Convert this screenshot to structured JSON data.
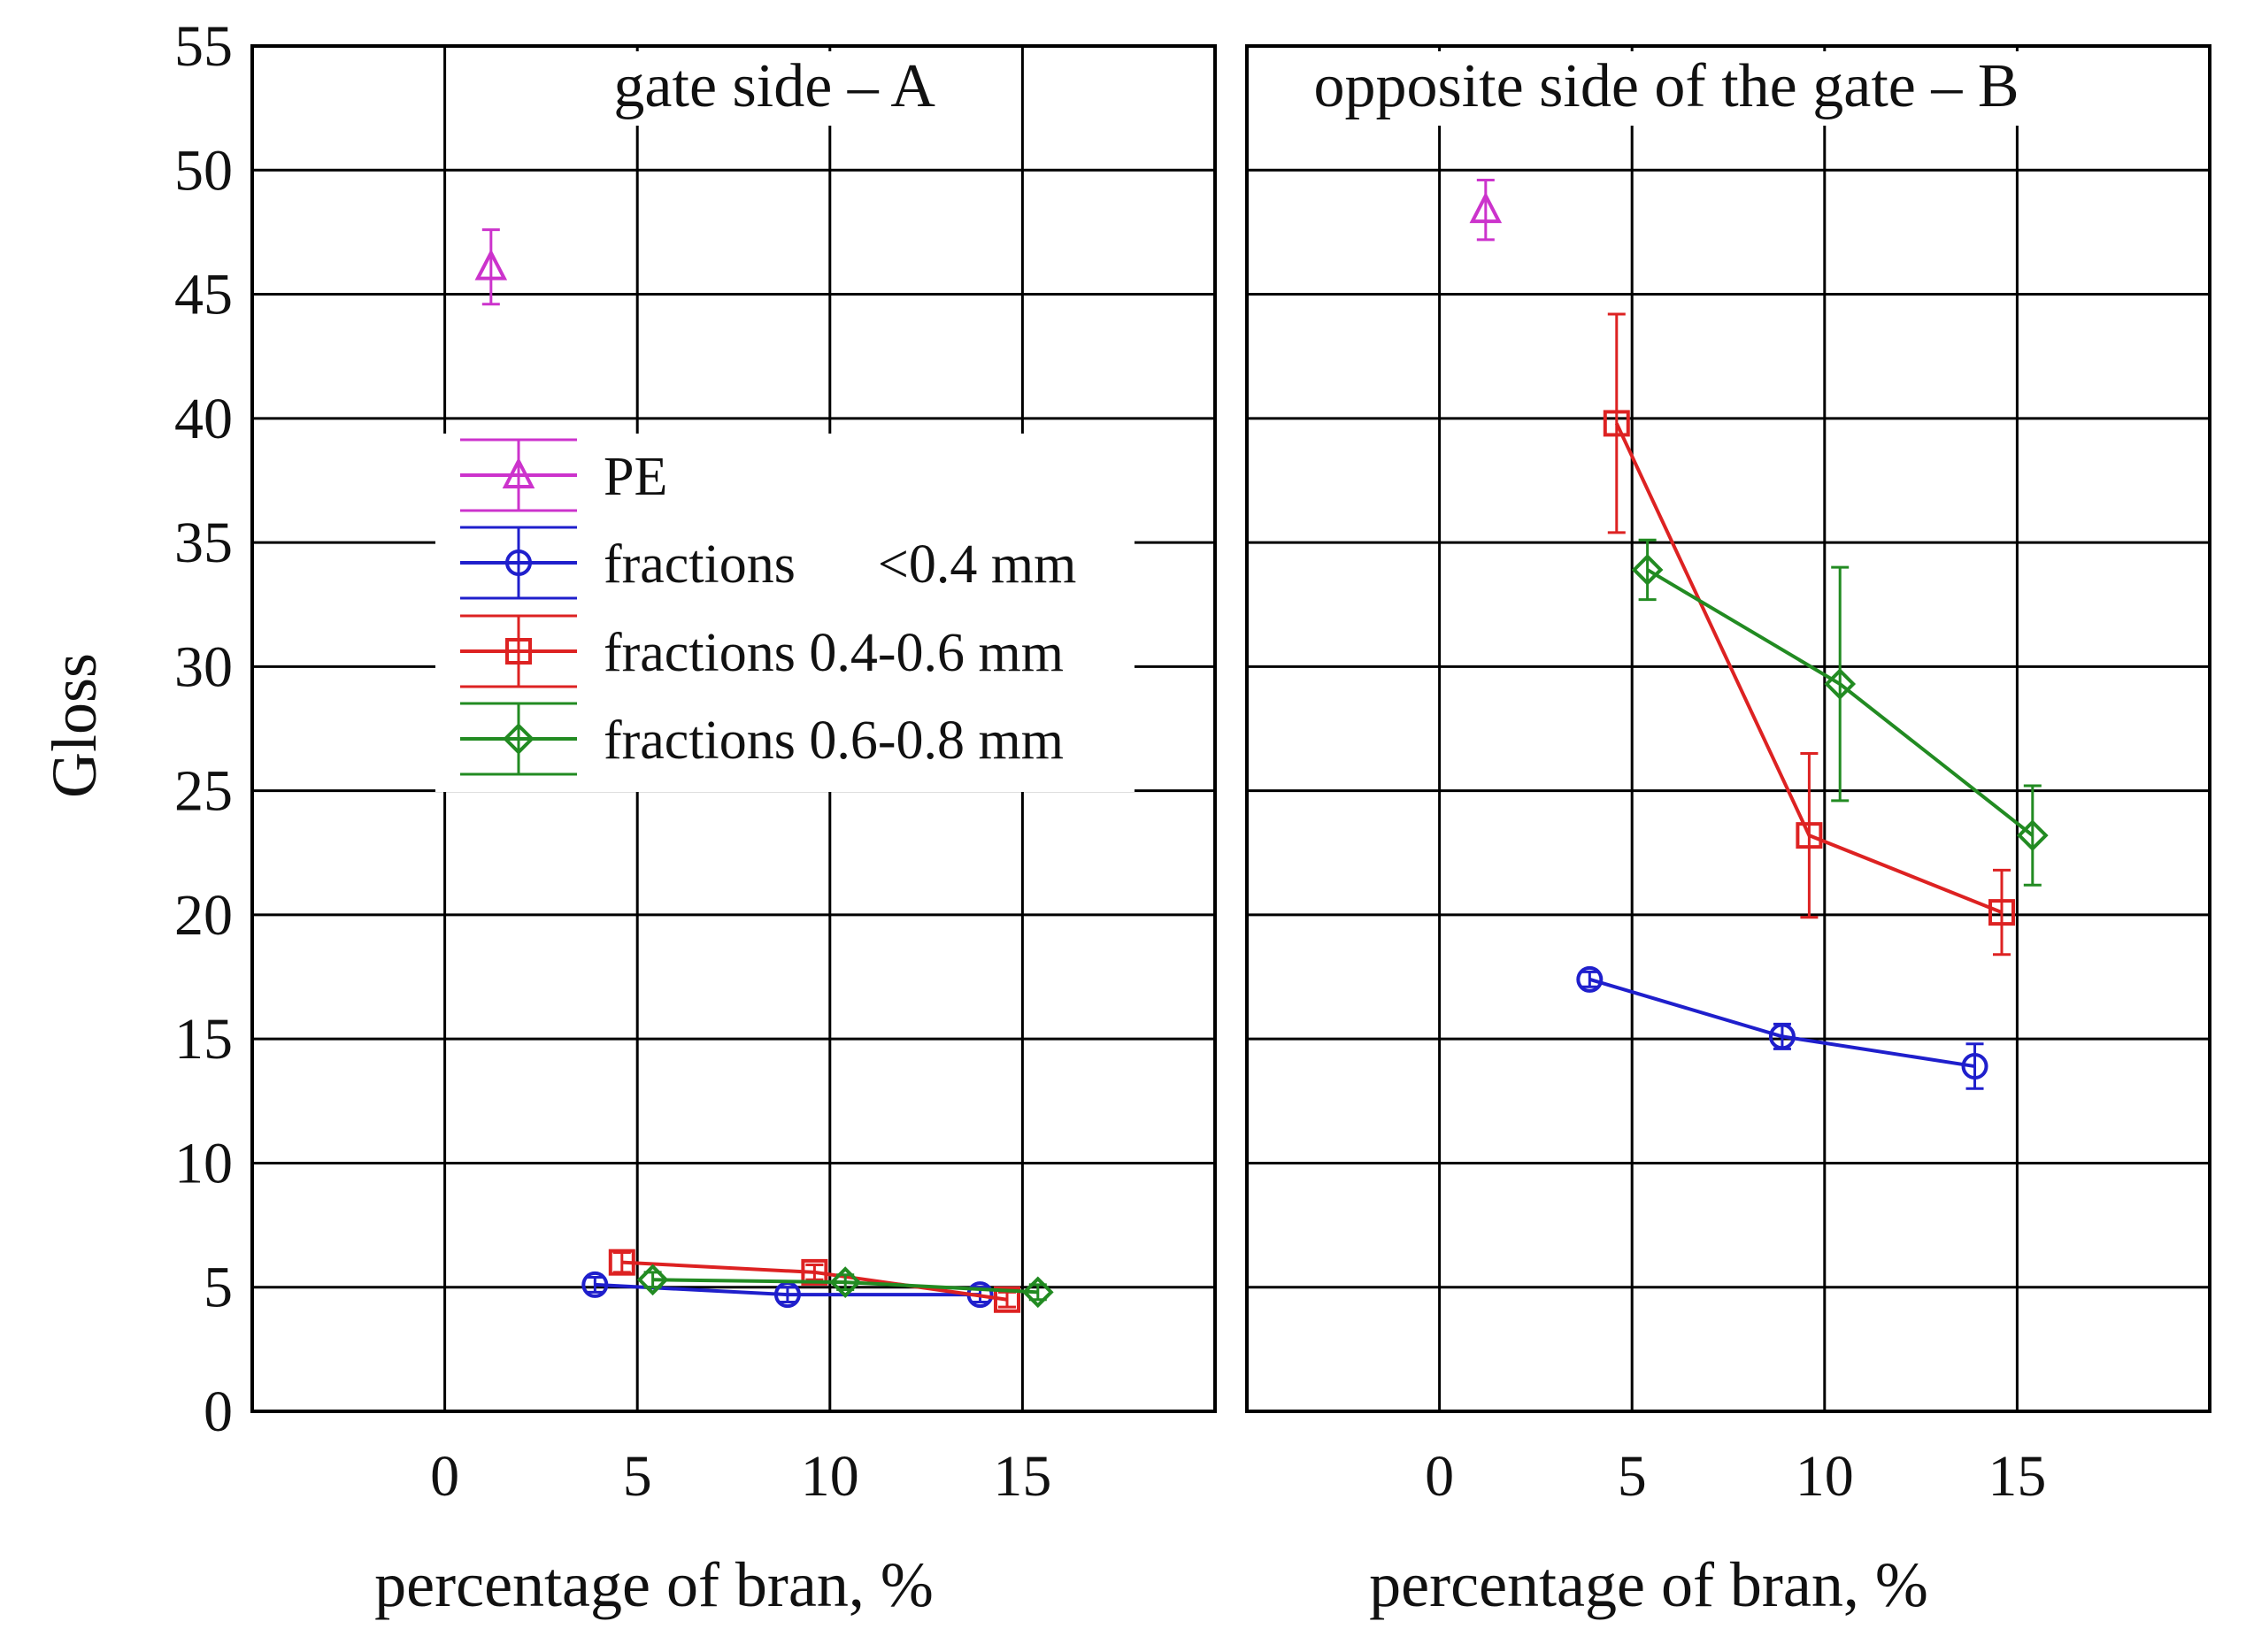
{
  "chart_data": {
    "type": "line",
    "ylabel": "Gloss",
    "ylim": [
      0,
      55
    ],
    "yticks": [
      0,
      5,
      10,
      15,
      20,
      25,
      30,
      35,
      40,
      45,
      50,
      55
    ],
    "xlim": [
      -5,
      20
    ],
    "xticks": [
      0,
      5,
      10,
      15
    ],
    "legend": {
      "position": "upper-left of left panel",
      "entries": [
        {
          "key": "pe",
          "name": "PE",
          "color": "#cc33cc",
          "marker": "triangle"
        },
        {
          "key": "f04",
          "name": "fractions      <0.4 mm",
          "color": "#1f1fcc",
          "marker": "circle"
        },
        {
          "key": "f0406",
          "name": "fractions 0.4-0.6 mm",
          "color": "#dd2222",
          "marker": "square"
        },
        {
          "key": "f0608",
          "name": "fractions 0.6-0.8 mm",
          "color": "#228b22",
          "marker": "diamond"
        }
      ]
    },
    "panels": [
      {
        "title": "gate side – A",
        "xlabel": "percentage of bran, %",
        "series": [
          {
            "key": "pe",
            "points": [
              {
                "x": 1.2,
                "y": 46.1,
                "err": 1.5
              }
            ]
          },
          {
            "key": "f04",
            "points": [
              {
                "x": 3.9,
                "y": 5.1,
                "err": 0.3
              },
              {
                "x": 8.9,
                "y": 4.7,
                "err": 0.3
              },
              {
                "x": 13.9,
                "y": 4.7,
                "err": 0.3
              }
            ]
          },
          {
            "key": "f0406",
            "points": [
              {
                "x": 4.6,
                "y": 6.0,
                "err": 0.4
              },
              {
                "x": 9.6,
                "y": 5.6,
                "err": 0.3
              },
              {
                "x": 14.6,
                "y": 4.5,
                "err": 0.3
              }
            ]
          },
          {
            "key": "f0608",
            "points": [
              {
                "x": 5.4,
                "y": 5.3,
                "err": 0.3
              },
              {
                "x": 10.4,
                "y": 5.2,
                "err": 0.3
              },
              {
                "x": 15.4,
                "y": 4.8,
                "err": 0.3
              }
            ]
          }
        ]
      },
      {
        "title": "opposite side of the gate – B",
        "xlabel": "percentage of bran, %",
        "series": [
          {
            "key": "pe",
            "points": [
              {
                "x": 1.2,
                "y": 48.4,
                "err": 1.2
              }
            ]
          },
          {
            "key": "f04",
            "points": [
              {
                "x": 3.9,
                "y": 17.4,
                "err": 0.3
              },
              {
                "x": 8.9,
                "y": 15.1,
                "err": 0.5
              },
              {
                "x": 13.9,
                "y": 13.9,
                "err": 0.9
              }
            ]
          },
          {
            "key": "f0406",
            "points": [
              {
                "x": 4.6,
                "y": 39.8,
                "err": 4.4
              },
              {
                "x": 9.6,
                "y": 23.2,
                "err": 3.3
              },
              {
                "x": 14.6,
                "y": 20.1,
                "err": 1.7
              }
            ]
          },
          {
            "key": "f0608",
            "points": [
              {
                "x": 5.4,
                "y": 33.9,
                "err": 1.2
              },
              {
                "x": 10.4,
                "y": 29.3,
                "err": 4.7
              },
              {
                "x": 15.4,
                "y": 23.2,
                "err": 2.0
              }
            ]
          }
        ]
      }
    ]
  }
}
